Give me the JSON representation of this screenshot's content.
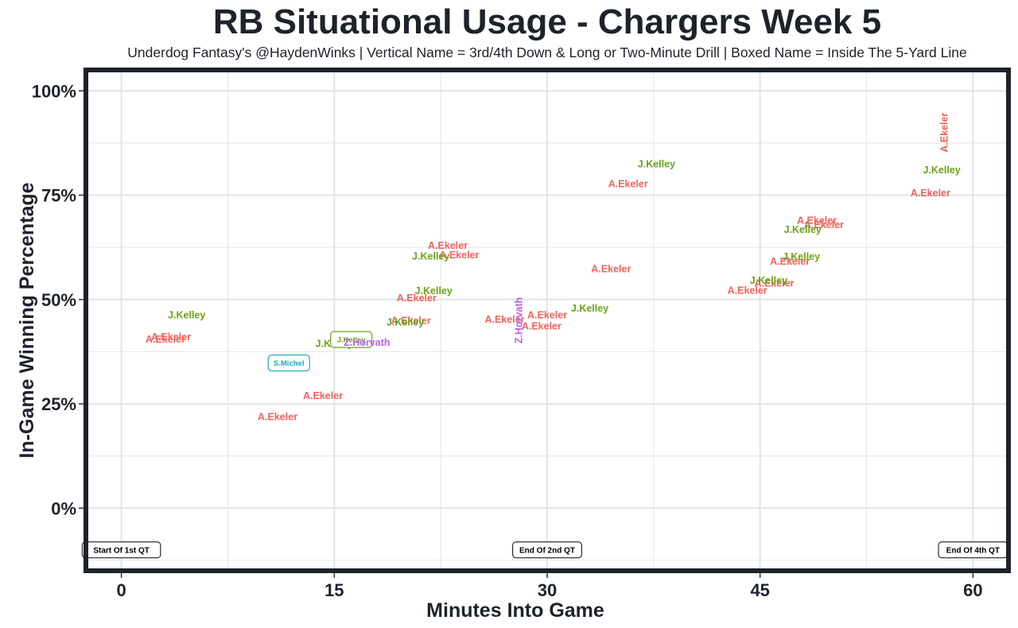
{
  "header": {
    "title": "RB Situational Usage - Chargers Week 5",
    "subtitle": "Underdog Fantasy's @HaydenWinks | Vertical Name = 3rd/4th Down & Long or Two-Minute Drill | Boxed Name = Inside The 5-Yard Line"
  },
  "colors": {
    "A.Ekeler": "#f0635c",
    "J.Kelley": "#6aa31a",
    "Z.Horvath": "#b762e3",
    "S.Michel": "#1aa6b5",
    "frame": "#1e222b",
    "grid": "#e4e4e4"
  },
  "chart_data": {
    "type": "scatter",
    "title": "RB Situational Usage - Chargers Week 5",
    "xlabel": "Minutes Into Game",
    "ylabel": "In-Game Winning Percentage",
    "xlim": [
      -2.5,
      62.5
    ],
    "ylim": [
      -15,
      105
    ],
    "x_ticks": [
      0,
      15,
      30,
      45,
      60
    ],
    "x_tick_labels": [
      "0",
      "15",
      "30",
      "45",
      "60"
    ],
    "y_ticks": [
      0,
      25,
      50,
      75,
      100
    ],
    "y_tick_labels": [
      "0%",
      "25%",
      "50%",
      "75%",
      "100%"
    ],
    "grid": true,
    "series": [
      {
        "name": "A.Ekeler",
        "points": [
          {
            "x": 3.1,
            "y": 40.5,
            "mark": "normal"
          },
          {
            "x": 3.5,
            "y": 41.1,
            "mark": "normal"
          },
          {
            "x": 11.0,
            "y": 22.0,
            "mark": "normal"
          },
          {
            "x": 14.2,
            "y": 27.0,
            "mark": "normal"
          },
          {
            "x": 20.8,
            "y": 50.4,
            "mark": "normal"
          },
          {
            "x": 20.4,
            "y": 45.0,
            "mark": "normal"
          },
          {
            "x": 23.0,
            "y": 63.0,
            "mark": "normal"
          },
          {
            "x": 23.8,
            "y": 60.7,
            "mark": "normal"
          },
          {
            "x": 27.0,
            "y": 45.3,
            "mark": "normal"
          },
          {
            "x": 30.0,
            "y": 46.3,
            "mark": "normal"
          },
          {
            "x": 29.6,
            "y": 43.7,
            "mark": "normal"
          },
          {
            "x": 34.5,
            "y": 57.4,
            "mark": "normal"
          },
          {
            "x": 35.7,
            "y": 77.8,
            "mark": "normal"
          },
          {
            "x": 44.1,
            "y": 52.2,
            "mark": "normal"
          },
          {
            "x": 46.0,
            "y": 54.0,
            "mark": "normal"
          },
          {
            "x": 47.1,
            "y": 59.2,
            "mark": "normal"
          },
          {
            "x": 49.0,
            "y": 69.0,
            "mark": "normal"
          },
          {
            "x": 49.5,
            "y": 68.0,
            "mark": "normal"
          },
          {
            "x": 57.0,
            "y": 75.6,
            "mark": "normal"
          },
          {
            "x": 58.0,
            "y": 90.0,
            "mark": "vertical"
          }
        ]
      },
      {
        "name": "J.Kelley",
        "points": [
          {
            "x": 4.6,
            "y": 46.3,
            "mark": "normal"
          },
          {
            "x": 15.0,
            "y": 39.5,
            "mark": "normal"
          },
          {
            "x": 16.2,
            "y": 40.4,
            "mark": "boxed"
          },
          {
            "x": 20.0,
            "y": 44.6,
            "mark": "normal"
          },
          {
            "x": 22.0,
            "y": 52.1,
            "mark": "normal"
          },
          {
            "x": 21.8,
            "y": 60.4,
            "mark": "normal"
          },
          {
            "x": 33.0,
            "y": 48.0,
            "mark": "normal"
          },
          {
            "x": 37.7,
            "y": 82.5,
            "mark": "normal"
          },
          {
            "x": 45.6,
            "y": 54.6,
            "mark": "normal"
          },
          {
            "x": 47.9,
            "y": 60.3,
            "mark": "normal"
          },
          {
            "x": 48.0,
            "y": 66.8,
            "mark": "normal"
          },
          {
            "x": 57.8,
            "y": 81.1,
            "mark": "normal"
          }
        ]
      },
      {
        "name": "Z.Horvath",
        "points": [
          {
            "x": 17.3,
            "y": 39.8,
            "mark": "normal"
          },
          {
            "x": 28.0,
            "y": 45.0,
            "mark": "vertical"
          }
        ]
      },
      {
        "name": "S.Michel",
        "points": [
          {
            "x": 11.8,
            "y": 34.8,
            "mark": "boxed"
          }
        ]
      }
    ],
    "quarter_markers": [
      {
        "x": 0,
        "label": "Start Of 1st QT"
      },
      {
        "x": 30,
        "label": "End Of 2nd QT"
      },
      {
        "x": 60,
        "label": "End Of 4th QT"
      }
    ]
  }
}
